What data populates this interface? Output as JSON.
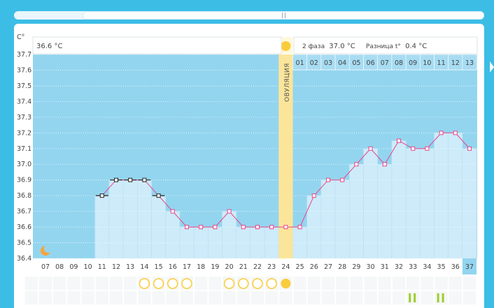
{
  "header": {
    "phase1_value": "36.6 °C",
    "phase2_label": "2 фаза",
    "phase2_value": "37.0 °C",
    "diff_label": "Разница t°",
    "diff_value": "0.4 °C"
  },
  "ovulation_label": "ОВУЛЯЦИЯ",
  "colors": {
    "background": "#3bbde6",
    "plot_bg": "#93d5ef",
    "bar_fill": "#cdebf9",
    "ovulation_band": "#fbe59a",
    "line": "#e8468a",
    "sun": "#f9cc3b",
    "moon": "#f6a53c",
    "pill": "#9dcd2c"
  },
  "phase2_days": [
    "01",
    "02",
    "03",
    "04",
    "05",
    "06",
    "07",
    "08",
    "09",
    "10",
    "11",
    "12",
    "13"
  ],
  "bottom": {
    "empty_circle_days": [
      "14",
      "15",
      "16",
      "17",
      "20",
      "21",
      "22",
      "23"
    ],
    "sun_circle_day": "24",
    "pill_days": [
      "33",
      "35"
    ],
    "moon_icon": "moon-icon"
  },
  "chart_data": {
    "type": "line",
    "ylabel": "C°",
    "ylim": [
      36.4,
      37.7
    ],
    "yticks": [
      "36.4",
      "36.5",
      "36.6",
      "36.7",
      "36.8",
      "36.9",
      "37.0",
      "37.1",
      "37.2",
      "37.3",
      "37.4",
      "37.5",
      "37.6",
      "37.7"
    ],
    "x": [
      "07",
      "08",
      "09",
      "10",
      "11",
      "12",
      "13",
      "14",
      "15",
      "16",
      "17",
      "18",
      "19",
      "20",
      "21",
      "22",
      "23",
      "24",
      "25",
      "26",
      "27",
      "28",
      "29",
      "30",
      "31",
      "32",
      "33",
      "34",
      "35",
      "36",
      "37"
    ],
    "series": [
      {
        "values": [
          null,
          null,
          null,
          null,
          36.8,
          36.9,
          36.9,
          36.9,
          36.8,
          36.7,
          36.6,
          36.6,
          36.6,
          36.7,
          36.6,
          36.6,
          36.6,
          36.6,
          36.6,
          36.8,
          36.9,
          36.9,
          37.0,
          37.1,
          37.0,
          37.15,
          37.1,
          37.1,
          37.2,
          37.2,
          37.1
        ]
      }
    ],
    "excluded_points": [
      "11",
      "12",
      "13",
      "14",
      "15"
    ],
    "ovulation_day": "24",
    "current_day": "37",
    "grid": true
  }
}
